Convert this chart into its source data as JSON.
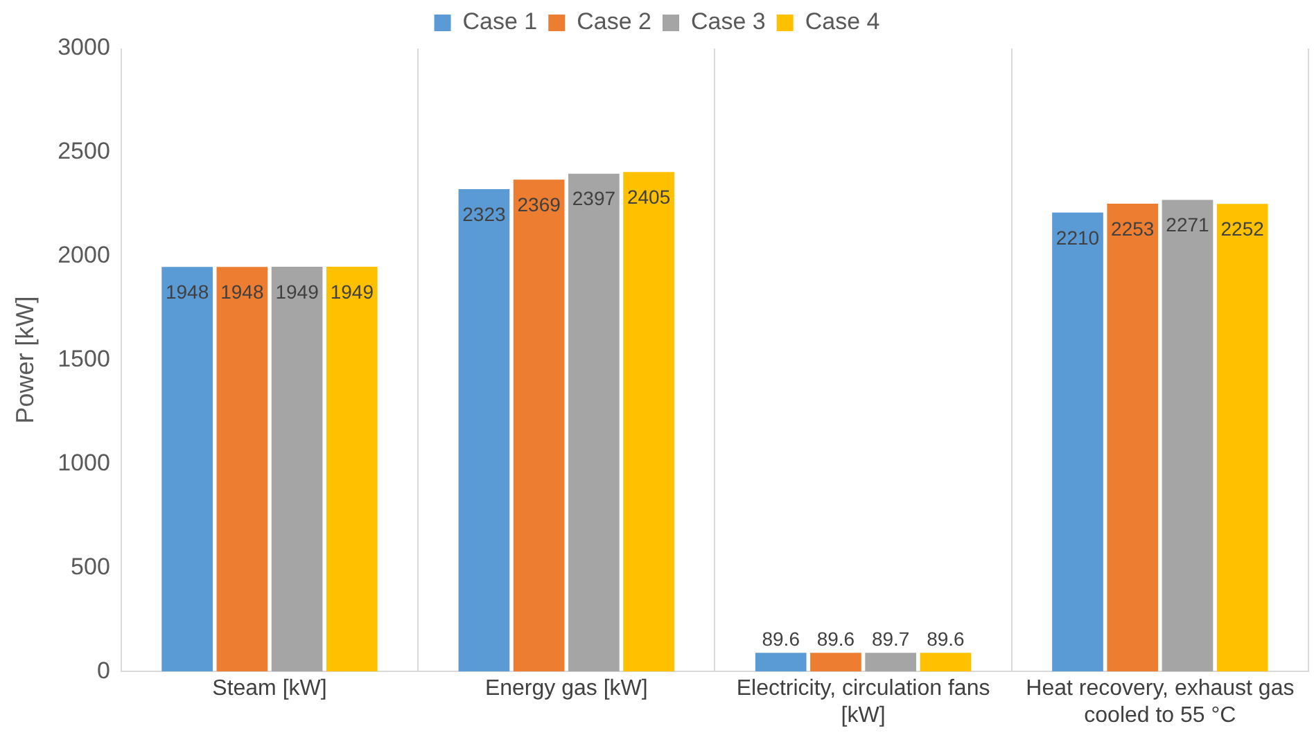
{
  "chart_data": {
    "type": "bar",
    "ylabel": "Power [kW]",
    "categories": [
      "Steam [kW]",
      "Energy gas [kW]",
      "Electricity, circulation fans [kW]",
      "Heat recovery, exhaust gas cooled to 55 °C"
    ],
    "series": [
      {
        "name": "Case 1",
        "color": "#5b9bd5",
        "values": [
          1948,
          2323,
          89.6,
          2210
        ]
      },
      {
        "name": "Case 2",
        "color": "#ed7d31",
        "values": [
          1948,
          2369,
          89.6,
          2253
        ]
      },
      {
        "name": "Case 3",
        "color": "#a5a5a5",
        "values": [
          1949,
          2397,
          89.7,
          2271
        ]
      },
      {
        "name": "Case 4",
        "color": "#ffc000",
        "values": [
          1949,
          2405,
          89.6,
          2252
        ]
      }
    ],
    "ylim": [
      0,
      3000
    ],
    "yticks": [
      0,
      500,
      1000,
      1500,
      2000,
      2500,
      3000
    ],
    "grid": "x",
    "legend": "top",
    "data_labels": true
  }
}
